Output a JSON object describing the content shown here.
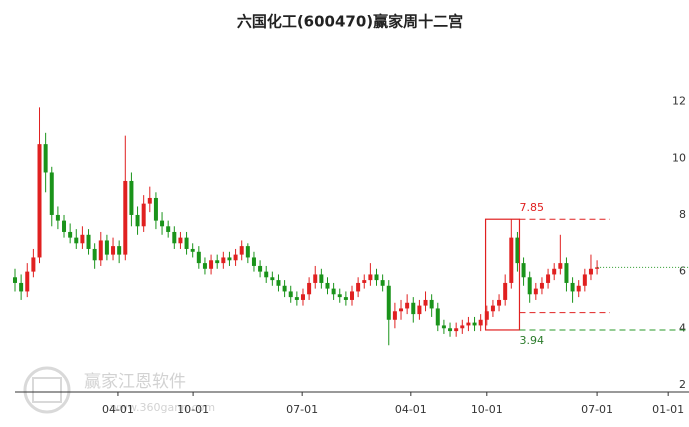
{
  "chart_data": {
    "type": "candlestick",
    "title": "六国化工(600470)赢家周十二宫",
    "up_color": "#e02020",
    "down_color": "#1a931a",
    "xlim": [
      0,
      1650
    ],
    "xticks": [
      {
        "value": 252,
        "label": "04-01"
      },
      {
        "value": 436,
        "label": "10-01"
      },
      {
        "value": 703,
        "label": "07-01"
      },
      {
        "value": 969,
        "label": "04-01"
      },
      {
        "value": 1155,
        "label": "10-01"
      },
      {
        "value": 1425,
        "label": "07-01"
      },
      {
        "value": 1599,
        "label": "01-01"
      }
    ],
    "ylim": [
      1.75,
      14
    ],
    "yticks": [
      2,
      4,
      6,
      8,
      10,
      12
    ],
    "x": [
      0,
      15,
      30,
      45,
      60,
      75,
      90,
      105,
      120,
      135,
      150,
      165,
      180,
      195,
      210,
      225,
      240,
      255,
      270,
      285,
      300,
      315,
      330,
      345,
      360,
      375,
      390,
      405,
      420,
      435,
      450,
      465,
      480,
      495,
      510,
      525,
      540,
      555,
      570,
      585,
      600,
      615,
      630,
      645,
      660,
      675,
      690,
      705,
      720,
      735,
      750,
      765,
      780,
      795,
      810,
      825,
      840,
      855,
      870,
      885,
      900,
      915,
      930,
      945,
      960,
      975,
      990,
      1005,
      1020,
      1035,
      1050,
      1065,
      1080,
      1095,
      1110,
      1125,
      1140,
      1155,
      1170,
      1185,
      1200,
      1215,
      1230,
      1245,
      1260,
      1275,
      1290,
      1305,
      1320,
      1335,
      1350,
      1365,
      1380,
      1395,
      1410,
      1425
    ],
    "open": [
      5.8,
      5.6,
      5.3,
      6.0,
      6.5,
      10.5,
      9.5,
      8.0,
      7.8,
      7.4,
      7.2,
      7.0,
      7.3,
      6.8,
      6.4,
      7.1,
      6.6,
      6.9,
      6.6,
      9.2,
      8.0,
      7.6,
      8.4,
      8.6,
      7.8,
      7.6,
      7.4,
      7.0,
      7.2,
      6.8,
      6.7,
      6.3,
      6.1,
      6.4,
      6.3,
      6.5,
      6.4,
      6.6,
      6.9,
      6.5,
      6.2,
      6.0,
      5.8,
      5.7,
      5.5,
      5.3,
      5.1,
      5.0,
      5.2,
      5.6,
      5.9,
      5.6,
      5.4,
      5.2,
      5.1,
      5.0,
      5.3,
      5.6,
      5.7,
      5.9,
      5.7,
      5.5,
      4.3,
      4.6,
      4.7,
      4.9,
      4.5,
      4.8,
      5.0,
      4.7,
      4.1,
      4.0,
      3.9,
      4.0,
      4.1,
      4.2,
      4.1,
      4.3,
      4.6,
      4.8,
      5.0,
      5.6,
      7.2,
      6.3,
      5.8,
      5.2,
      5.4,
      5.6,
      5.9,
      6.1,
      6.3,
      5.6,
      5.3,
      5.5,
      5.9,
      6.1
    ],
    "high": [
      6.1,
      5.9,
      6.3,
      6.8,
      11.8,
      10.9,
      9.7,
      8.3,
      8.0,
      7.7,
      7.5,
      7.6,
      7.5,
      7.0,
      7.4,
      7.3,
      7.2,
      7.1,
      10.8,
      9.5,
      8.3,
      8.7,
      9.0,
      8.8,
      8.1,
      7.8,
      7.6,
      7.4,
      7.4,
      7.0,
      6.9,
      6.5,
      6.6,
      6.6,
      6.7,
      6.7,
      6.8,
      7.1,
      7.0,
      6.7,
      6.4,
      6.2,
      6.0,
      5.9,
      5.7,
      5.5,
      5.3,
      5.4,
      5.8,
      6.2,
      6.1,
      5.8,
      5.6,
      5.4,
      5.3,
      5.5,
      5.8,
      5.9,
      6.3,
      6.1,
      5.9,
      5.7,
      4.9,
      5.0,
      5.2,
      5.1,
      5.0,
      5.3,
      5.2,
      4.9,
      4.3,
      4.2,
      4.2,
      4.3,
      4.4,
      4.4,
      4.5,
      4.8,
      5.0,
      5.2,
      5.9,
      7.85,
      7.4,
      6.5,
      6.0,
      5.6,
      5.8,
      6.1,
      6.3,
      7.3,
      6.5,
      5.8,
      5.7,
      6.1,
      6.6,
      6.4
    ],
    "low": [
      5.3,
      5.0,
      5.1,
      5.8,
      6.3,
      8.8,
      7.6,
      7.5,
      7.2,
      7.0,
      6.8,
      6.8,
      6.6,
      6.1,
      6.2,
      6.4,
      6.4,
      6.3,
      6.4,
      7.6,
      7.3,
      7.4,
      8.1,
      7.5,
      7.3,
      7.2,
      6.8,
      6.8,
      6.6,
      6.5,
      6.1,
      5.9,
      5.9,
      6.1,
      6.1,
      6.2,
      6.2,
      6.4,
      6.3,
      6.0,
      5.8,
      5.6,
      5.5,
      5.3,
      5.1,
      4.9,
      4.8,
      4.8,
      5.0,
      5.4,
      5.4,
      5.2,
      5.0,
      4.9,
      4.8,
      4.8,
      5.1,
      5.4,
      5.5,
      5.5,
      5.3,
      3.4,
      4.0,
      4.3,
      4.5,
      4.2,
      4.3,
      4.6,
      4.4,
      3.9,
      3.8,
      3.7,
      3.7,
      3.8,
      3.9,
      3.9,
      3.9,
      4.1,
      4.4,
      4.6,
      4.8,
      5.4,
      6.0,
      5.5,
      4.9,
      5.0,
      5.2,
      5.4,
      5.7,
      5.9,
      5.3,
      4.9,
      5.1,
      5.3,
      5.7,
      5.9
    ],
    "close": [
      5.6,
      5.3,
      6.0,
      6.5,
      10.5,
      9.5,
      8.0,
      7.8,
      7.4,
      7.2,
      7.0,
      7.3,
      6.8,
      6.4,
      7.1,
      6.6,
      6.9,
      6.6,
      9.2,
      8.0,
      7.6,
      8.4,
      8.6,
      7.8,
      7.6,
      7.4,
      7.0,
      7.2,
      6.8,
      6.7,
      6.3,
      6.1,
      6.4,
      6.3,
      6.5,
      6.4,
      6.6,
      6.9,
      6.5,
      6.2,
      6.0,
      5.8,
      5.7,
      5.5,
      5.3,
      5.1,
      5.0,
      5.2,
      5.6,
      5.9,
      5.6,
      5.4,
      5.2,
      5.1,
      5.0,
      5.3,
      5.6,
      5.7,
      5.9,
      5.7,
      5.5,
      4.3,
      4.6,
      4.7,
      4.9,
      4.5,
      4.8,
      5.0,
      4.7,
      4.1,
      4.0,
      3.9,
      4.0,
      4.1,
      4.2,
      4.1,
      4.3,
      4.6,
      4.8,
      5.0,
      5.6,
      7.2,
      6.3,
      5.8,
      5.2,
      5.4,
      5.6,
      5.9,
      6.1,
      6.3,
      5.6,
      5.3,
      5.5,
      5.9,
      6.1,
      6.15
    ],
    "range_box": {
      "x": [
        1152,
        1235
      ]
    },
    "resistance": 7.85,
    "support": 3.94,
    "lower_band": 4.55,
    "watermark": {
      "name": "赢家江恩软件",
      "url": "www.360gann.com"
    }
  }
}
